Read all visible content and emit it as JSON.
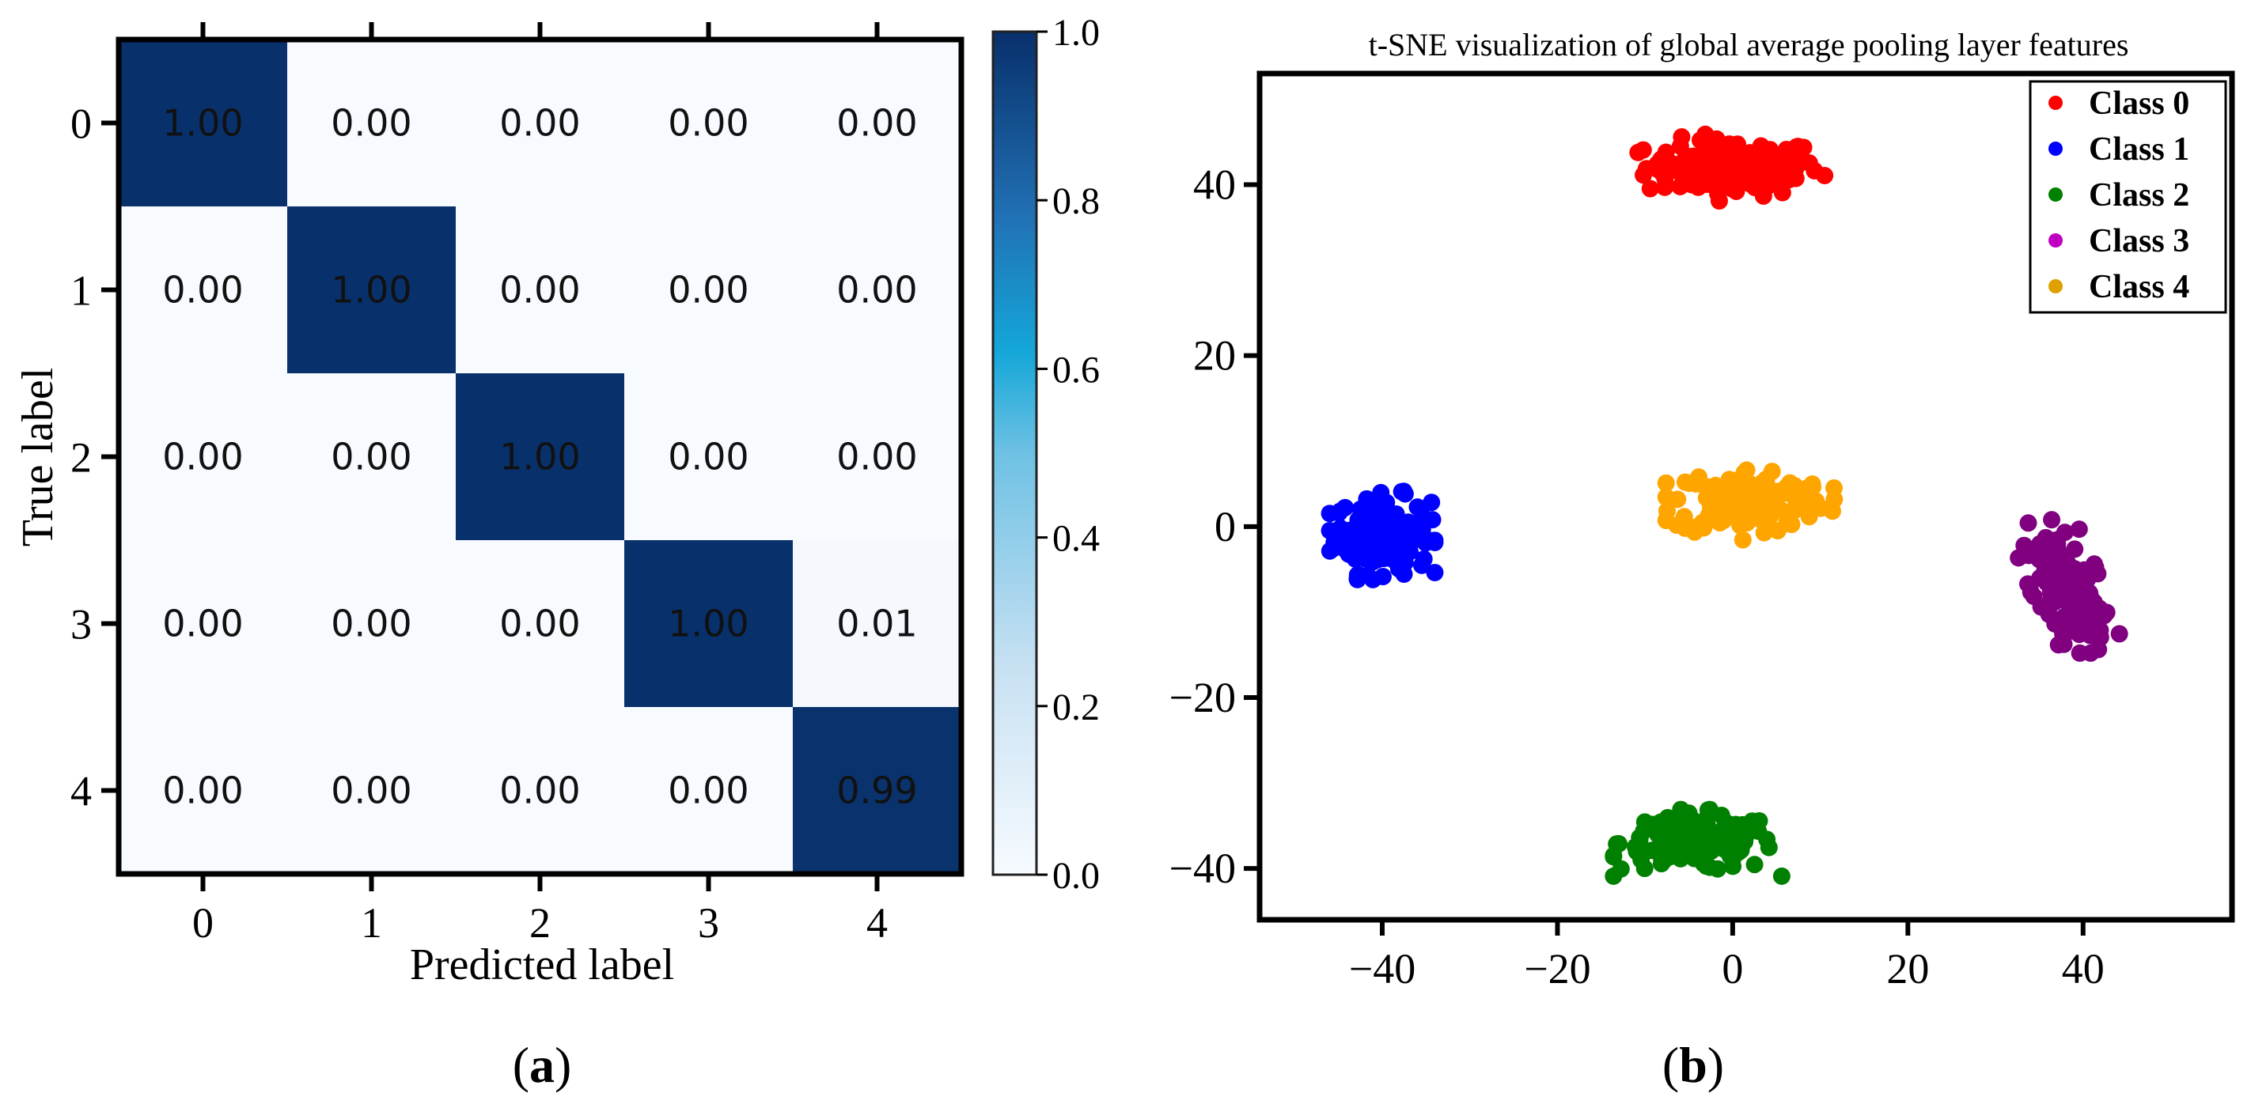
{
  "chart_data": [
    {
      "type": "heatmap",
      "panel_label": "a",
      "title": "",
      "xlabel": "Predicted label",
      "ylabel": "True label",
      "x_tick_labels": [
        "0",
        "1",
        "2",
        "3",
        "4"
      ],
      "y_tick_labels": [
        "0",
        "1",
        "2",
        "3",
        "4"
      ],
      "matrix": [
        [
          1.0,
          0.0,
          0.0,
          0.0,
          0.0
        ],
        [
          0.0,
          1.0,
          0.0,
          0.0,
          0.0
        ],
        [
          0.0,
          0.0,
          1.0,
          0.0,
          0.0
        ],
        [
          0.0,
          0.0,
          0.0,
          1.0,
          0.01
        ],
        [
          0.0,
          0.0,
          0.0,
          0.0,
          0.99
        ]
      ],
      "cell_labels": [
        [
          "1.00",
          "0.00",
          "0.00",
          "0.00",
          "0.00"
        ],
        [
          "0.00",
          "1.00",
          "0.00",
          "0.00",
          "0.00"
        ],
        [
          "0.00",
          "0.00",
          "1.00",
          "0.00",
          "0.00"
        ],
        [
          "0.00",
          "0.00",
          "0.00",
          "1.00",
          "0.01"
        ],
        [
          "0.00",
          "0.00",
          "0.00",
          "0.00",
          "0.99"
        ]
      ],
      "colormap": "Blues",
      "colorbar": {
        "range": [
          0.0,
          1.0
        ],
        "tick_labels": [
          "0.0",
          "0.2",
          "0.4",
          "0.6",
          "0.8",
          "1.0"
        ],
        "stops": [
          "#f7fbff",
          "#b5d4e9",
          "#1ca8d8",
          "#2171b5",
          "#08306b"
        ]
      }
    },
    {
      "type": "scatter",
      "panel_label": "b",
      "title": "t-SNE visualization of global average pooling layer features",
      "xlabel": "",
      "ylabel": "",
      "xlim": [
        -54,
        57
      ],
      "ylim": [
        -46,
        53
      ],
      "x_tick_labels": [
        "-40",
        "-20",
        "0",
        "20",
        "40"
      ],
      "y_tick_labels": [
        "-40",
        "-20",
        "0",
        "20",
        "40"
      ],
      "legend_position": "top-right",
      "series": [
        {
          "name": "Class 0",
          "color": "#ff0000",
          "center": [
            0,
            42
          ],
          "spread": [
            9,
            3
          ],
          "count": 150
        },
        {
          "name": "Class 1",
          "color": "#0000ff",
          "center": [
            -40,
            -1
          ],
          "spread": [
            5,
            4
          ],
          "count": 150
        },
        {
          "name": "Class 2",
          "color": "#008000",
          "center": [
            -4,
            -37
          ],
          "spread": [
            8,
            3
          ],
          "count": 150
        },
        {
          "name": "Class 3",
          "color": "#800080",
          "center": [
            38,
            -7
          ],
          "spread": [
            3.5,
            6
          ],
          "count": 150
        },
        {
          "name": "Class 4",
          "color": "#ffa500",
          "center": [
            2,
            3
          ],
          "spread": [
            8,
            3.5
          ],
          "count": 150
        }
      ],
      "legend_marker_colors": [
        "#ff0000",
        "#0000ff",
        "#008000",
        "#c000c0",
        "#e0a000"
      ]
    }
  ]
}
